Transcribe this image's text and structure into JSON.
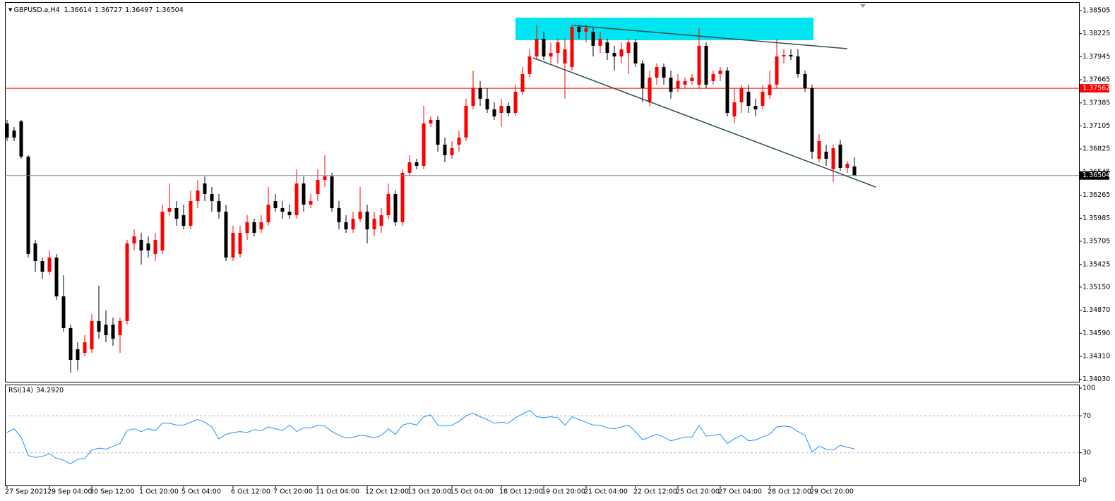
{
  "chart_data": {
    "type": "candlestick",
    "symbol": "GBPUSD.a,H4",
    "up_color": "#ff0000",
    "down_color": "#000000",
    "categories": [
      "27 Sep 2021",
      null,
      null,
      null,
      null,
      null,
      "29 Sep 04:00",
      null,
      null,
      null,
      null,
      null,
      "30 Sep 12:00",
      null,
      null,
      null,
      null,
      null,
      null,
      "1 Oct 20:00",
      null,
      null,
      null,
      null,
      null,
      "5 Oct 04:00",
      null,
      null,
      null,
      null,
      null,
      null,
      "6 Oct 12:00",
      null,
      null,
      null,
      null,
      null,
      "7 Oct 20:00",
      null,
      null,
      null,
      null,
      null,
      "11 Oct 04:00",
      null,
      null,
      null,
      null,
      null,
      null,
      "12 Oct 12:00",
      null,
      null,
      null,
      null,
      null,
      "13 Oct 20:00",
      null,
      null,
      null,
      null,
      null,
      "15 Oct 04:00",
      null,
      null,
      null,
      null,
      null,
      null,
      "18 Oct 12:00",
      null,
      null,
      null,
      null,
      null,
      "19 Oct 20:00",
      null,
      null,
      null,
      null,
      null,
      "21 Oct 04:00",
      null,
      null,
      null,
      null,
      null,
      null,
      "22 Oct 12:00",
      null,
      null,
      null,
      null,
      null,
      "25 Oct 20:00",
      null,
      null,
      null,
      null,
      null,
      "27 Oct 04:00",
      null,
      null,
      null,
      null,
      null,
      null,
      "28 Oct 12:00",
      null,
      null,
      null,
      null,
      null,
      "29 Oct 20:00",
      null,
      null,
      null,
      null,
      null,
      null
    ],
    "open": [
      1.37135,
      1.37049,
      1.37161,
      1.36733,
      1.3568,
      1.35466,
      1.35337,
      1.35509,
      1.35038,
      1.34653,
      1.34396,
      1.34353,
      1.34396,
      1.34738,
      1.34695,
      1.34695,
      1.34567,
      1.34738,
      1.3568,
      1.35723,
      1.3568,
      1.35551,
      1.35594,
      1.36065,
      1.36108,
      1.36022,
      1.35894,
      1.36193,
      1.36407,
      1.36279,
      1.36193,
      1.36065,
      1.35509,
      1.35551,
      1.35808,
      1.35937,
      1.35851,
      1.35937,
      1.36193,
      1.36108,
      1.36065,
      1.36022,
      1.36407,
      1.36151,
      1.36279,
      1.3645,
      1.36493,
      1.36108,
      1.35937,
      1.35851,
      1.35979,
      1.36065,
      1.35851,
      1.35894,
      1.36022,
      1.36279,
      1.35937,
      1.36536,
      1.36664,
      1.36621,
      1.37135,
      1.37178,
      1.36878,
      1.3675,
      1.36878,
      1.36964,
      1.37349,
      1.37563,
      1.37435,
      1.37306,
      1.37263,
      1.37349,
      1.37263,
      1.3752,
      1.37734,
      1.37948,
      1.38162,
      1.37948,
      1.37991,
      1.37863,
      1.3782,
      1.38308,
      1.38248,
      1.38248,
      1.38077,
      1.38119,
      1.37991,
      1.37948,
      1.37991,
      1.38119,
      1.37863,
      1.37392,
      1.37691,
      1.3782,
      1.37691,
      1.37563,
      1.37606,
      1.37649,
      1.37606,
      1.38077,
      1.37649,
      1.37734,
      1.37777,
      1.37221,
      1.37392,
      1.3752,
      1.37349,
      1.37349,
      1.37477,
      1.37606,
      1.37948,
      1.37965,
      1.37948,
      1.37734,
      1.37563,
      1.36707,
      1.36793,
      1.36579,
      1.36878,
      1.36596,
      1.36614
    ],
    "high": [
      1.37178,
      1.37092,
      1.37178,
      1.3675,
      1.35723,
      1.35509,
      1.35594,
      1.35551,
      1.35295,
      1.34695,
      1.34481,
      1.34567,
      1.34824,
      1.35166,
      1.34867,
      1.34781,
      1.34781,
      1.35723,
      1.35851,
      1.35808,
      1.35765,
      1.35808,
      1.36151,
      1.36407,
      1.36193,
      1.36151,
      1.36322,
      1.3645,
      1.36493,
      1.36365,
      1.36279,
      1.36151,
      1.35894,
      1.35894,
      1.36022,
      1.35979,
      1.36022,
      1.36365,
      1.36279,
      1.36193,
      1.36151,
      1.36579,
      1.36493,
      1.36279,
      1.36579,
      1.3675,
      1.36536,
      1.36193,
      1.36022,
      1.36065,
      1.36365,
      1.36151,
      1.36065,
      1.36108,
      1.36407,
      1.36322,
      1.36579,
      1.3675,
      1.36707,
      1.37349,
      1.37221,
      1.37221,
      1.36964,
      1.36921,
      1.37049,
      1.37435,
      1.37777,
      1.37649,
      1.37563,
      1.37392,
      1.37435,
      1.37392,
      1.37606,
      1.3782,
      1.38034,
      1.38333,
      1.38248,
      1.38119,
      1.38162,
      1.38162,
      1.38333,
      1.38333,
      1.38333,
      1.38291,
      1.38248,
      1.38162,
      1.38077,
      1.38119,
      1.38162,
      1.38162,
      1.37905,
      1.37777,
      1.37863,
      1.37863,
      1.37777,
      1.37734,
      1.37691,
      1.37734,
      1.38291,
      1.38119,
      1.37777,
      1.3782,
      1.3782,
      1.37563,
      1.37606,
      1.37606,
      1.37435,
      1.37606,
      1.37777,
      1.38162,
      1.38034,
      1.38034,
      1.38034,
      1.37777,
      1.37606,
      1.37007,
      1.36878,
      1.36878,
      1.36938,
      1.36681,
      1.36727
    ],
    "low": [
      1.36921,
      1.36921,
      1.36707,
      1.35509,
      1.35337,
      1.35252,
      1.35295,
      1.34995,
      1.3461,
      1.34113,
      1.34139,
      1.3431,
      1.34353,
      1.34524,
      1.34481,
      1.34439,
      1.34353,
      1.34695,
      1.35594,
      1.35423,
      1.35509,
      1.35466,
      1.35551,
      1.36022,
      1.35894,
      1.35851,
      1.35851,
      1.36108,
      1.36193,
      1.36065,
      1.35979,
      1.35466,
      1.35466,
      1.35509,
      1.35723,
      1.35765,
      1.35808,
      1.35894,
      1.36065,
      1.35979,
      1.35979,
      1.35979,
      1.36065,
      1.36108,
      1.36193,
      1.36365,
      1.36065,
      1.35851,
      1.35808,
      1.35808,
      1.35937,
      1.3568,
      1.35765,
      1.35808,
      1.35979,
      1.35894,
      1.35894,
      1.36493,
      1.36579,
      1.36579,
      1.37092,
      1.36793,
      1.36664,
      1.36707,
      1.36793,
      1.36921,
      1.37306,
      1.37349,
      1.37263,
      1.37178,
      1.37092,
      1.37221,
      1.37221,
      1.37477,
      1.37691,
      1.37905,
      1.37905,
      1.37863,
      1.37863,
      1.37435,
      1.37777,
      1.38162,
      1.38119,
      1.37948,
      1.37991,
      1.37905,
      1.37777,
      1.37863,
      1.37734,
      1.3782,
      1.37392,
      1.37349,
      1.37606,
      1.37606,
      1.37435,
      1.3752,
      1.37563,
      1.37606,
      1.37563,
      1.37563,
      1.37606,
      1.37649,
      1.37221,
      1.37135,
      1.37263,
      1.37263,
      1.37221,
      1.37306,
      1.37435,
      1.37563,
      1.37863,
      1.37905,
      1.37691,
      1.3752,
      1.36707,
      1.36664,
      1.36621,
      1.36425,
      1.36561,
      1.36536,
      1.36497
    ],
    "close": [
      1.36964,
      1.36964,
      1.36733,
      1.35551,
      1.35466,
      1.35337,
      1.35509,
      1.35038,
      1.34653,
      1.34267,
      1.34267,
      1.34481,
      1.34738,
      1.3461,
      1.34567,
      1.34524,
      1.34738,
      1.3568,
      1.35765,
      1.35594,
      1.35594,
      1.35723,
      1.36065,
      1.36108,
      1.35979,
      1.35894,
      1.36193,
      1.36322,
      1.36279,
      1.36193,
      1.36065,
      1.35509,
      1.35808,
      1.35808,
      1.35937,
      1.35808,
      1.35937,
      1.36151,
      1.36108,
      1.36065,
      1.36022,
      1.36407,
      1.36151,
      1.36193,
      1.3645,
      1.36493,
      1.36108,
      1.35937,
      1.35851,
      1.35979,
      1.36065,
      1.35851,
      1.35979,
      1.36022,
      1.36279,
      1.35937,
      1.36536,
      1.36664,
      1.36621,
      1.37135,
      1.37178,
      1.36878,
      1.3675,
      1.36835,
      1.36964,
      1.37349,
      1.37563,
      1.37435,
      1.37306,
      1.37221,
      1.37349,
      1.37263,
      1.3752,
      1.37734,
      1.37948,
      1.38162,
      1.37948,
      1.37991,
      1.38119,
      1.38034,
      1.38308,
      1.38248,
      1.38291,
      1.38077,
      1.38162,
      1.37991,
      1.37948,
      1.38034,
      1.38119,
      1.37863,
      1.37563,
      1.37691,
      1.3782,
      1.37691,
      1.3752,
      1.37649,
      1.37649,
      1.37691,
      1.38077,
      1.37606,
      1.37734,
      1.37777,
      1.37263,
      1.37392,
      1.37563,
      1.37349,
      1.37306,
      1.3752,
      1.37606,
      1.37948,
      1.37965,
      1.37948,
      1.37734,
      1.37563,
      1.36793,
      1.36921,
      1.36707,
      1.36835,
      1.36596,
      1.36647,
      1.36504
    ],
    "ylim": [
      1.34002,
      1.3859
    ],
    "yticks": [
      1.38505,
      1.38225,
      1.37945,
      1.37665,
      1.37385,
      1.37105,
      1.36825,
      1.36545,
      1.36265,
      1.35985,
      1.35705,
      1.35425,
      {
        "value": 1.3515,
        "label": "1.35150"
      },
      {
        "value": 1.3487,
        "label": "1.34870"
      },
      {
        "value": 1.3459,
        "label": "1.34590"
      },
      {
        "value": 1.3431,
        "label": "1.34310"
      },
      {
        "value": 1.3403,
        "label": "1.34030"
      }
    ],
    "levels": [
      {
        "value": 1.37562,
        "color": "#ff0000"
      }
    ],
    "bid_line_color": "#778899",
    "rsi": {
      "name": "RSI(14)",
      "value_label": "34.2920",
      "color": "#1e90ff",
      "ylim": [
        0,
        100
      ],
      "yticks": [
        0,
        30,
        70,
        100
      ],
      "values": [
        52,
        56,
        47,
        27,
        25,
        26,
        29,
        24,
        22,
        18,
        23,
        24,
        33,
        35,
        34,
        37,
        40,
        54,
        56,
        53,
        56,
        54,
        62,
        62,
        60,
        60,
        63,
        66,
        63,
        58,
        45,
        50,
        52,
        53,
        52,
        55,
        54,
        58,
        56,
        54,
        60,
        53,
        57,
        57,
        60,
        59,
        53,
        49,
        46,
        47,
        49,
        48,
        46,
        49,
        56,
        50,
        60,
        62,
        60,
        69,
        71,
        60,
        59,
        60,
        64,
        70,
        73,
        69,
        66,
        62,
        63,
        62,
        68,
        72,
        76,
        69,
        68,
        69,
        68,
        60,
        69,
        66,
        63,
        60,
        60,
        57,
        56,
        58,
        60,
        53,
        44,
        47,
        50,
        47,
        43,
        45,
        47,
        47,
        60,
        48,
        49,
        50,
        40,
        45,
        49,
        43,
        44,
        47,
        50,
        58,
        59,
        58,
        53,
        49,
        31,
        37,
        34,
        33,
        38,
        36,
        34.292
      ]
    }
  }
}
